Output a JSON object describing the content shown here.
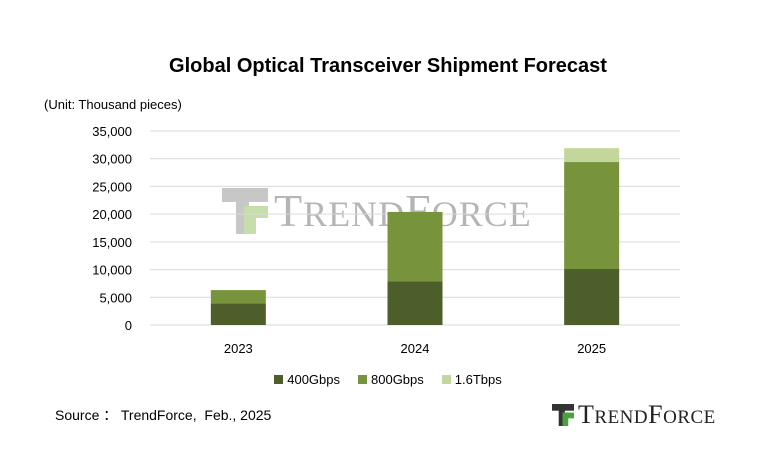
{
  "chart_data": {
    "type": "bar",
    "stacked": true,
    "title": "Global Optical Transceiver Shipment Forecast",
    "unit_label": "(Unit: Thousand pieces)",
    "categories": [
      "2023",
      "2024",
      "2025"
    ],
    "series": [
      {
        "name": "400Gbps",
        "values": [
          3900,
          7900,
          10100
        ],
        "color": "#4e5e2a"
      },
      {
        "name": "800Gbps",
        "values": [
          2400,
          12500,
          19300
        ],
        "color": "#77933c"
      },
      {
        "name": "1.6Tbps",
        "values": [
          0,
          0,
          2500
        ],
        "color": "#c3d69b"
      }
    ],
    "ylim": [
      0,
      35000
    ],
    "yticks": [
      "35,000",
      "30,000",
      "25,000",
      "20,000",
      "15,000",
      "10,000",
      "5,000",
      "0"
    ],
    "grid": true,
    "legend_position": "bottom"
  },
  "source_text": "Source ： TrendForce,  Feb., 2025",
  "logo": {
    "word_first": "T",
    "word_rest_a": "REND",
    "word_mid": "F",
    "word_rest_b": "ORCE",
    "icon": "trendforce-logo-icon"
  }
}
